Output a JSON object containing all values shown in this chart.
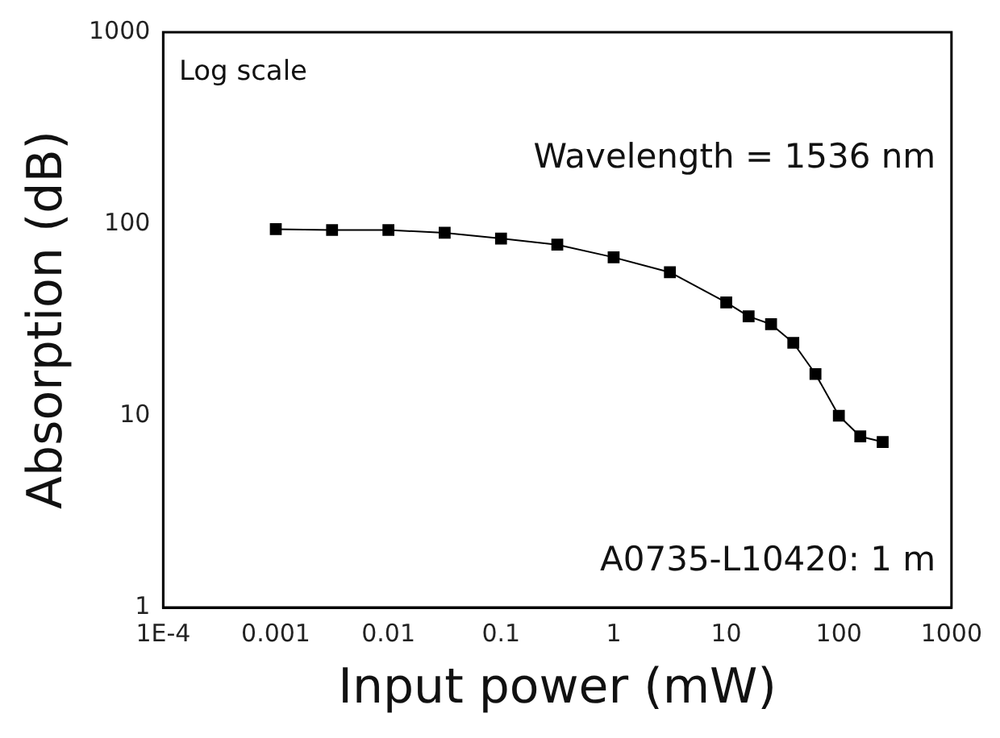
{
  "chart_data": {
    "type": "line",
    "xlabel": "Input power (mW)",
    "ylabel": "Absorption (dB)",
    "annotations": [
      "Log scale",
      "Wavelength = 1536 nm",
      "A0735-L10420: 1 m"
    ],
    "x": [
      0.001,
      0.00316,
      0.01,
      0.0316,
      0.1,
      0.316,
      1,
      3.16,
      10,
      15.8,
      25,
      39.4,
      62,
      100,
      155,
      245
    ],
    "series": [
      {
        "color": "#000000",
        "values": [
          94,
          93,
          93,
          90,
          84,
          78,
          67,
          56,
          39,
          33,
          30,
          24,
          16.5,
          10,
          7.8,
          7.3
        ]
      }
    ],
    "log": "xy",
    "xlim": [
      0.0001,
      1000
    ],
    "ylim": [
      1,
      1000
    ],
    "xticks": [
      {
        "value": 0.0001,
        "label": "1E-4"
      },
      0.001,
      0.01,
      0.1,
      1,
      10,
      100,
      1000
    ],
    "yticks": [
      1,
      10,
      100,
      1000
    ],
    "grid": false,
    "legend": false,
    "marker": "square",
    "line_style": "solid"
  }
}
